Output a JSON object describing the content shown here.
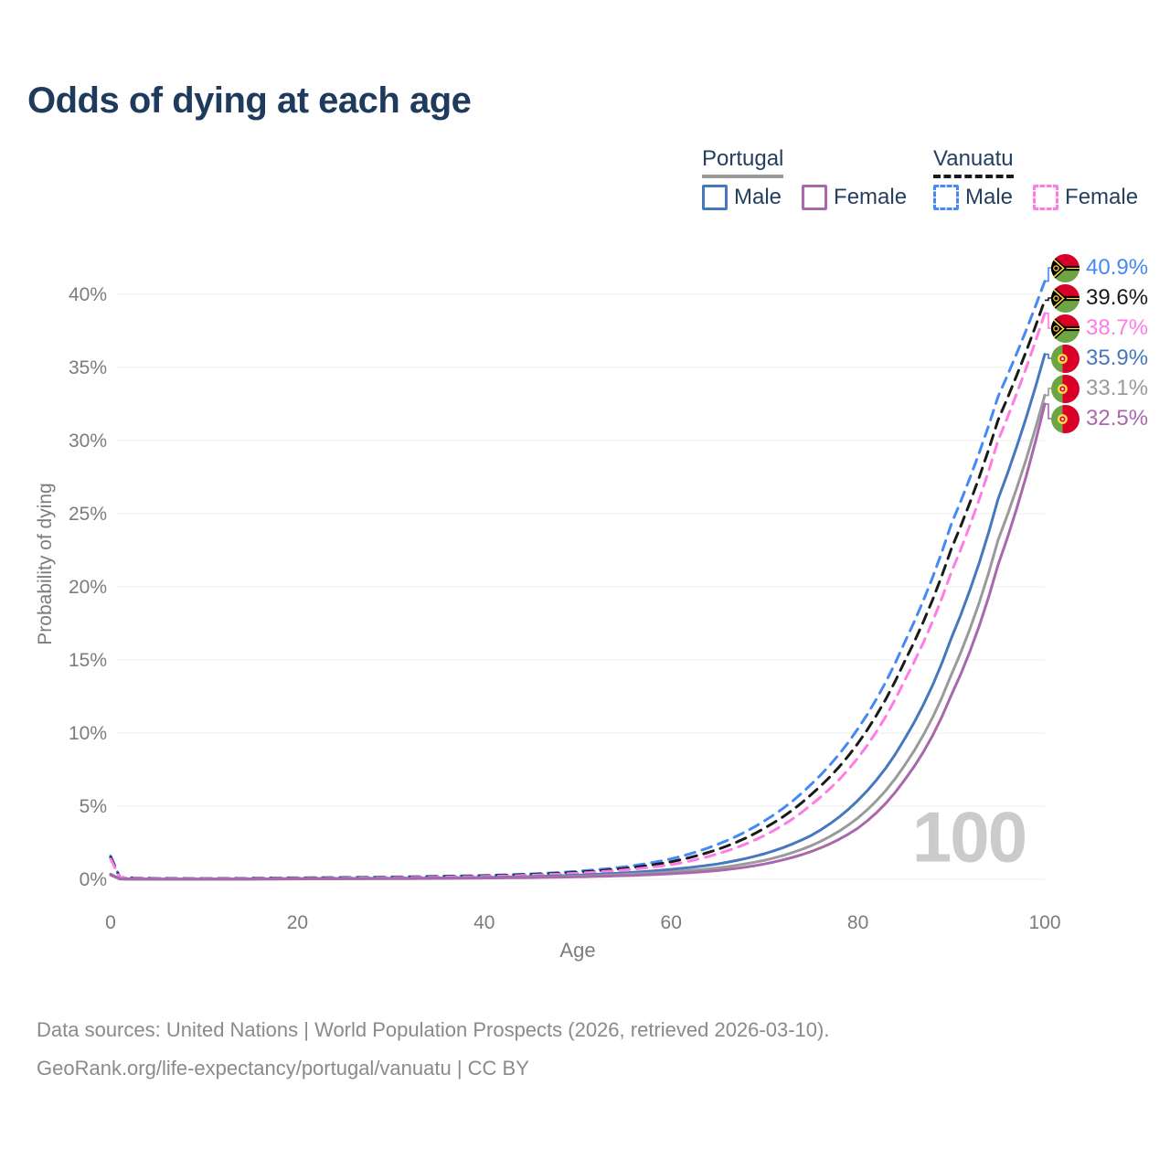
{
  "title": "Odds of dying at each age",
  "watermark": "100",
  "legend": {
    "groups": [
      {
        "label": "Portugal",
        "line_style": "solid",
        "line_color": "#9a9a9a",
        "items": [
          {
            "label": "Male",
            "color": "#4678bd",
            "style": "solid"
          },
          {
            "label": "Female",
            "color": "#a868ab",
            "style": "solid"
          }
        ]
      },
      {
        "label": "Vanuatu",
        "line_style": "dashed",
        "line_color": "#1a1a1a",
        "items": [
          {
            "label": "Male",
            "color": "#4489f4",
            "style": "dashed"
          },
          {
            "label": "Female",
            "color": "#ff7ce6",
            "style": "dashed"
          }
        ]
      }
    ]
  },
  "footer": {
    "line1": "Data sources: United Nations | World Population Prospects (2026, retrieved 2026-03-10).",
    "line2": "GeoRank.org/life-expectancy/portugal/vanuatu | CC BY"
  },
  "chart_data": {
    "type": "line",
    "title": "Odds of dying at each age",
    "xlabel": "Age",
    "ylabel": "Probability of dying",
    "xlim": [
      0,
      100
    ],
    "ylim": [
      0,
      42
    ],
    "x_ticks": [
      0,
      20,
      40,
      60,
      80,
      100
    ],
    "y_ticks": [
      0,
      5,
      10,
      15,
      20,
      25,
      30,
      35,
      40
    ],
    "y_tick_suffix": "%",
    "grid": "horizontal",
    "legend_position": "top-right",
    "series": [
      {
        "id": "vanuatu-male",
        "name": "Vanuatu Male",
        "country": "Vanuatu",
        "sex": "Male",
        "color": "#4489f4",
        "dash": true,
        "flag": "vanuatu",
        "end_label": "40.9%",
        "end_value": 40.9,
        "points": [
          [
            0,
            1.6
          ],
          [
            1,
            0.12
          ],
          [
            5,
            0.07
          ],
          [
            10,
            0.06
          ],
          [
            15,
            0.08
          ],
          [
            20,
            0.11
          ],
          [
            25,
            0.13
          ],
          [
            30,
            0.16
          ],
          [
            35,
            0.21
          ],
          [
            40,
            0.27
          ],
          [
            45,
            0.37
          ],
          [
            50,
            0.55
          ],
          [
            55,
            0.85
          ],
          [
            60,
            1.4
          ],
          [
            65,
            2.4
          ],
          [
            70,
            4.0
          ],
          [
            75,
            6.5
          ],
          [
            80,
            10.3
          ],
          [
            85,
            16.2
          ],
          [
            90,
            24.3
          ],
          [
            95,
            33.0
          ],
          [
            100,
            40.9
          ]
        ]
      },
      {
        "id": "vanuatu-total",
        "name": "Vanuatu",
        "country": "Vanuatu",
        "sex": "Both",
        "color": "#1a1a1a",
        "dash": true,
        "flag": "vanuatu",
        "end_label": "39.6%",
        "end_value": 39.6,
        "points": [
          [
            0,
            1.5
          ],
          [
            1,
            0.11
          ],
          [
            5,
            0.06
          ],
          [
            10,
            0.05
          ],
          [
            15,
            0.07
          ],
          [
            20,
            0.09
          ],
          [
            25,
            0.11
          ],
          [
            30,
            0.14
          ],
          [
            35,
            0.18
          ],
          [
            40,
            0.24
          ],
          [
            45,
            0.33
          ],
          [
            50,
            0.48
          ],
          [
            55,
            0.74
          ],
          [
            60,
            1.2
          ],
          [
            65,
            2.05
          ],
          [
            70,
            3.5
          ],
          [
            75,
            5.8
          ],
          [
            80,
            9.3
          ],
          [
            85,
            14.9
          ],
          [
            90,
            22.6
          ],
          [
            95,
            31.4
          ],
          [
            100,
            39.6
          ]
        ]
      },
      {
        "id": "vanuatu-female",
        "name": "Vanuatu Female",
        "country": "Vanuatu",
        "sex": "Female",
        "color": "#ff7ce6",
        "dash": true,
        "flag": "vanuatu",
        "end_label": "38.7%",
        "end_value": 38.7,
        "points": [
          [
            0,
            1.4
          ],
          [
            1,
            0.1
          ],
          [
            5,
            0.055
          ],
          [
            10,
            0.045
          ],
          [
            15,
            0.06
          ],
          [
            20,
            0.075
          ],
          [
            25,
            0.09
          ],
          [
            30,
            0.12
          ],
          [
            35,
            0.15
          ],
          [
            40,
            0.2
          ],
          [
            45,
            0.28
          ],
          [
            50,
            0.42
          ],
          [
            55,
            0.64
          ],
          [
            60,
            1.0
          ],
          [
            65,
            1.75
          ],
          [
            70,
            3.0
          ],
          [
            75,
            5.1
          ],
          [
            80,
            8.3
          ],
          [
            85,
            13.6
          ],
          [
            90,
            21.0
          ],
          [
            95,
            30.0
          ],
          [
            100,
            38.7
          ]
        ]
      },
      {
        "id": "portugal-male",
        "name": "Portugal Male",
        "country": "Portugal",
        "sex": "Male",
        "color": "#4678bd",
        "dash": false,
        "flag": "portugal",
        "end_label": "35.9%",
        "end_value": 35.9,
        "points": [
          [
            0,
            0.35
          ],
          [
            1,
            0.03
          ],
          [
            5,
            0.012
          ],
          [
            10,
            0.012
          ],
          [
            15,
            0.025
          ],
          [
            20,
            0.05
          ],
          [
            25,
            0.06
          ],
          [
            30,
            0.07
          ],
          [
            35,
            0.09
          ],
          [
            40,
            0.13
          ],
          [
            45,
            0.19
          ],
          [
            50,
            0.29
          ],
          [
            55,
            0.44
          ],
          [
            60,
            0.68
          ],
          [
            65,
            1.05
          ],
          [
            70,
            1.75
          ],
          [
            75,
            3.0
          ],
          [
            80,
            5.4
          ],
          [
            85,
            9.6
          ],
          [
            90,
            16.5
          ],
          [
            95,
            26.0
          ],
          [
            100,
            35.9
          ]
        ]
      },
      {
        "id": "portugal-total",
        "name": "Portugal",
        "country": "Portugal",
        "sex": "Both",
        "color": "#9a9a9a",
        "dash": false,
        "flag": "portugal",
        "end_label": "33.1%",
        "end_value": 33.1,
        "points": [
          [
            0,
            0.32
          ],
          [
            1,
            0.026
          ],
          [
            5,
            0.01
          ],
          [
            10,
            0.01
          ],
          [
            15,
            0.02
          ],
          [
            20,
            0.04
          ],
          [
            25,
            0.05
          ],
          [
            30,
            0.06
          ],
          [
            35,
            0.075
          ],
          [
            40,
            0.105
          ],
          [
            45,
            0.15
          ],
          [
            50,
            0.22
          ],
          [
            55,
            0.33
          ],
          [
            60,
            0.5
          ],
          [
            65,
            0.78
          ],
          [
            70,
            1.3
          ],
          [
            75,
            2.3
          ],
          [
            80,
            4.2
          ],
          [
            85,
            7.8
          ],
          [
            90,
            14.0
          ],
          [
            95,
            23.2
          ],
          [
            100,
            33.1
          ]
        ]
      },
      {
        "id": "portugal-female",
        "name": "Portugal Female",
        "country": "Portugal",
        "sex": "Female",
        "color": "#a868ab",
        "dash": false,
        "flag": "portugal",
        "end_label": "32.5%",
        "end_value": 32.5,
        "points": [
          [
            0,
            0.3
          ],
          [
            1,
            0.022
          ],
          [
            5,
            0.009
          ],
          [
            10,
            0.009
          ],
          [
            15,
            0.015
          ],
          [
            20,
            0.028
          ],
          [
            25,
            0.035
          ],
          [
            30,
            0.045
          ],
          [
            35,
            0.06
          ],
          [
            40,
            0.085
          ],
          [
            45,
            0.12
          ],
          [
            50,
            0.17
          ],
          [
            55,
            0.25
          ],
          [
            60,
            0.38
          ],
          [
            65,
            0.6
          ],
          [
            70,
            1.05
          ],
          [
            75,
            1.9
          ],
          [
            80,
            3.5
          ],
          [
            85,
            6.8
          ],
          [
            90,
            12.6
          ],
          [
            95,
            21.5
          ],
          [
            100,
            32.5
          ]
        ]
      }
    ]
  }
}
